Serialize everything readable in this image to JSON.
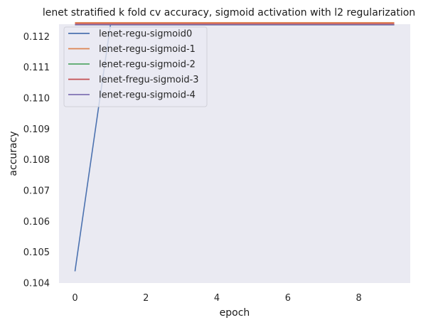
{
  "chart_data": {
    "type": "line",
    "title": "lenet stratified k fold cv accuracy, sigmoid activation with l2 regularization",
    "xlabel": "epoch",
    "ylabel": "accuracy",
    "xlim": [
      -0.45,
      9.45
    ],
    "ylim": [
      0.104,
      0.1124
    ],
    "x_ticks": [
      0,
      2,
      4,
      6,
      8
    ],
    "y_ticks": [
      0.104,
      0.105,
      0.106,
      0.107,
      0.108,
      0.109,
      0.11,
      0.111,
      0.112
    ],
    "y_tick_labels": [
      "0.104",
      "0.105",
      "0.106",
      "0.107",
      "0.108",
      "0.109",
      "0.110",
      "0.111",
      "0.112"
    ],
    "grid": false,
    "legend_position": "upper-left",
    "series": [
      {
        "name": "lenet-regu-sigmoid0",
        "color": "#4c72b0",
        "x": [
          0,
          1,
          2,
          3,
          4,
          5,
          6,
          7,
          8,
          9
        ],
        "y": [
          0.10438,
          0.11238,
          0.11238,
          0.11238,
          0.11238,
          0.11238,
          0.11238,
          0.11238,
          0.11238,
          0.11238
        ]
      },
      {
        "name": "lenet-regu-sigmoid-1",
        "color": "#dd8452",
        "x": [
          0,
          1,
          2,
          3,
          4,
          5,
          6,
          7,
          8,
          9
        ],
        "y": [
          0.11245,
          0.11245,
          0.11245,
          0.11245,
          0.11245,
          0.11245,
          0.11245,
          0.11245,
          0.11245,
          0.11245
        ]
      },
      {
        "name": "lenet-regu-sigmoid-2",
        "color": "#55a868",
        "x": [
          0,
          1,
          2,
          3,
          4,
          5,
          6,
          7,
          8,
          9
        ],
        "y": [
          0.11238,
          0.11238,
          0.11238,
          0.11238,
          0.11238,
          0.11238,
          0.11238,
          0.11238,
          0.11238,
          0.11238
        ]
      },
      {
        "name": "lenet-fregu-sigmoid-3",
        "color": "#c44e52",
        "x": [
          0,
          1,
          2,
          3,
          4,
          5,
          6,
          7,
          8,
          9
        ],
        "y": [
          0.11241,
          0.11241,
          0.11241,
          0.11241,
          0.11241,
          0.11241,
          0.11241,
          0.11241,
          0.11241,
          0.11241
        ]
      },
      {
        "name": "lenet-regu-sigmoid-4",
        "color": "#8172b3",
        "x": [
          0,
          1,
          2,
          3,
          4,
          5,
          6,
          7,
          8,
          9
        ],
        "y": [
          0.11238,
          0.11238,
          0.11238,
          0.11238,
          0.11238,
          0.11238,
          0.11238,
          0.11238,
          0.11238,
          0.11238
        ]
      }
    ]
  }
}
